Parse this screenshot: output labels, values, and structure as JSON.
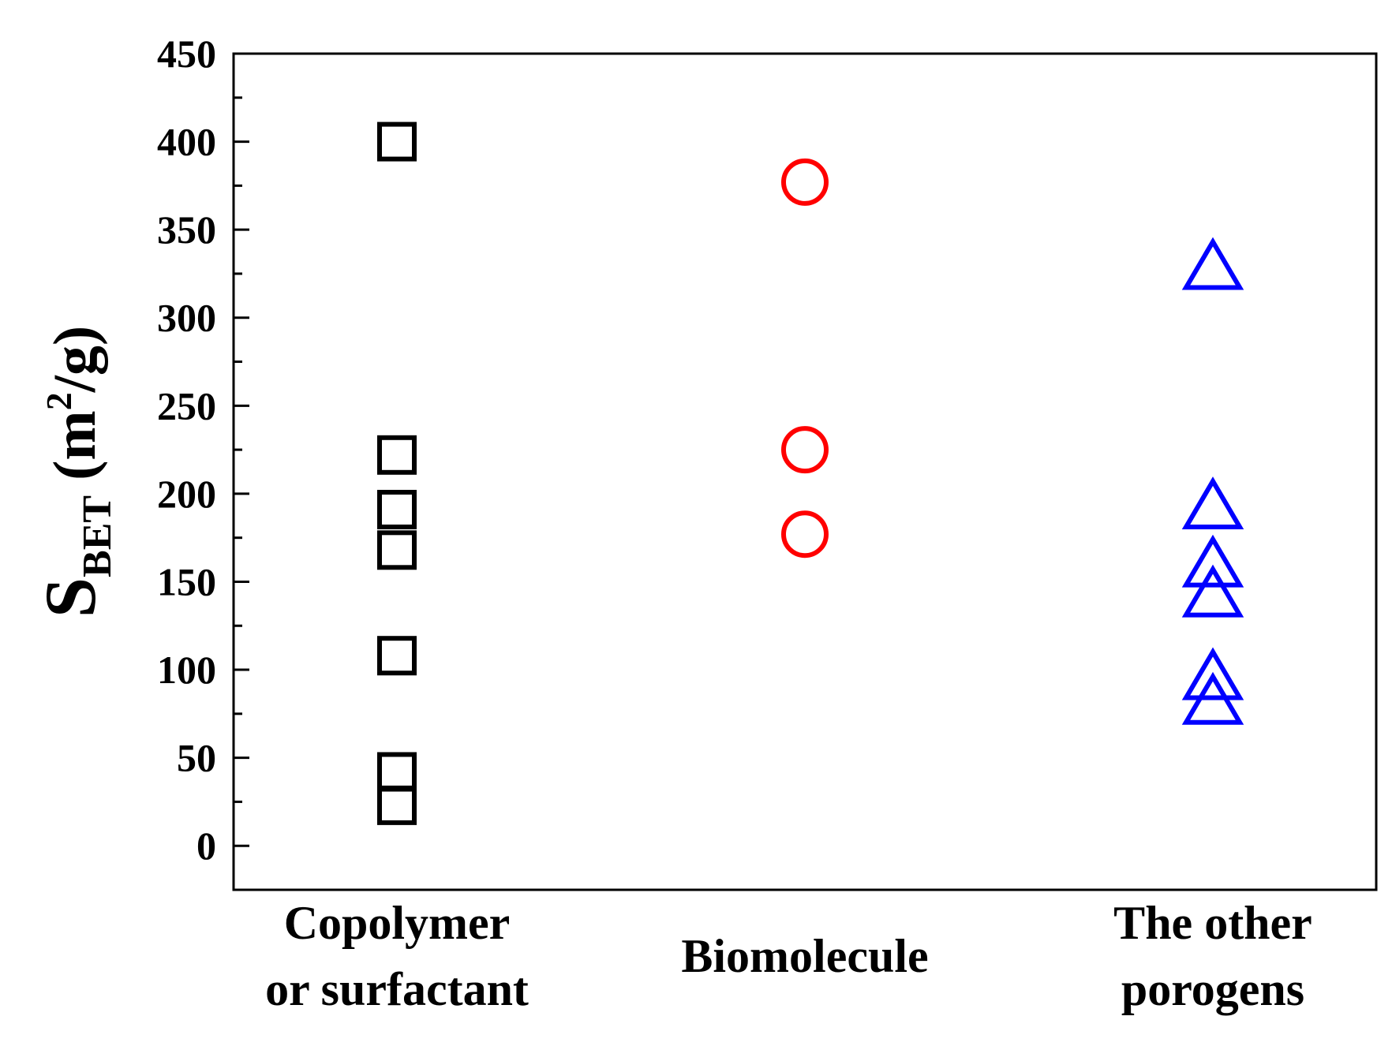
{
  "chart_data": {
    "type": "scatter",
    "ylabel": {
      "main": "S",
      "subscript": "BET",
      "unit_prefix": " (m",
      "unit_superscript": "2",
      "unit_suffix": "/g)"
    },
    "ylim": [
      -25,
      450
    ],
    "yticks": [
      0,
      50,
      100,
      150,
      200,
      250,
      300,
      350,
      400,
      450
    ],
    "ytick_labels": [
      "0",
      "50",
      "100",
      "150",
      "200",
      "250",
      "300",
      "350",
      "400",
      "450"
    ],
    "grid": false,
    "legend": false,
    "categories": [
      {
        "lines": [
          "Copolymer",
          "or surfactant"
        ]
      },
      {
        "lines": [
          "Biomolecule"
        ]
      },
      {
        "lines": [
          "The other",
          "porogens"
        ]
      }
    ],
    "series": [
      {
        "category_index": 0,
        "marker": "square",
        "color": "#000000",
        "values": [
          400,
          222,
          191,
          168,
          108,
          42,
          23
        ]
      },
      {
        "category_index": 1,
        "marker": "circle",
        "color": "#ff0000",
        "values": [
          377,
          225,
          177
        ]
      },
      {
        "category_index": 2,
        "marker": "triangle",
        "color": "#0000ff",
        "values": [
          327,
          191,
          158,
          141,
          94,
          80
        ]
      }
    ]
  }
}
